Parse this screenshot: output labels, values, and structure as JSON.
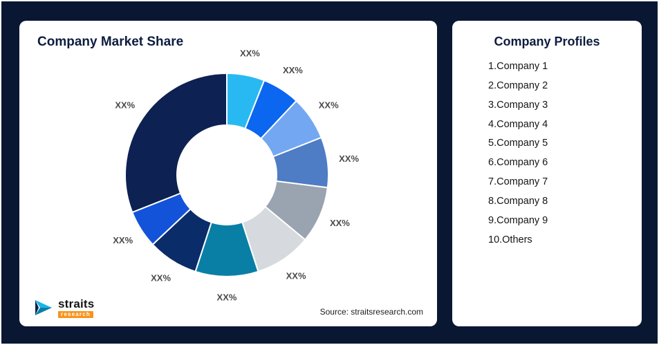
{
  "background": {
    "color": "#0A1733"
  },
  "market_share_card": {
    "title": "Company Market Share",
    "source": "Source: straitsresearch.com",
    "logo": {
      "brand": "straits",
      "sub_brand": "research"
    }
  },
  "profiles_card": {
    "title": "Company Profiles",
    "items": [
      "1.Company 1",
      "2.Company 2",
      "3.Company 3",
      "4.Company 4",
      "5.Company 5",
      "6.Company 6",
      "7.Company 7",
      "8.Company 8",
      "9.Company 9",
      "10.Others"
    ]
  },
  "chart_data": {
    "type": "pie",
    "subtype": "donut",
    "title": "Company Market Share",
    "labels": [
      "XX%",
      "XX%",
      "XX%",
      "XX%",
      "XX%",
      "XX%",
      "XX%",
      "XX%",
      "XX%",
      "XX%"
    ],
    "values_estimated_pct": [
      6,
      6,
      7,
      8,
      9,
      9,
      10,
      8,
      6,
      31
    ],
    "colors": [
      "#29B9F2",
      "#0B66F0",
      "#73A7F2",
      "#4E7CC5",
      "#9AA3B0",
      "#D6DADE",
      "#0A7FA6",
      "#0A2C69",
      "#1353D9",
      "#0D2152"
    ],
    "start_angle_deg": 0,
    "direction": "clockwise",
    "inner_radius_ratio": 0.49,
    "label_color": "#4a4a4a",
    "legend": "none"
  }
}
